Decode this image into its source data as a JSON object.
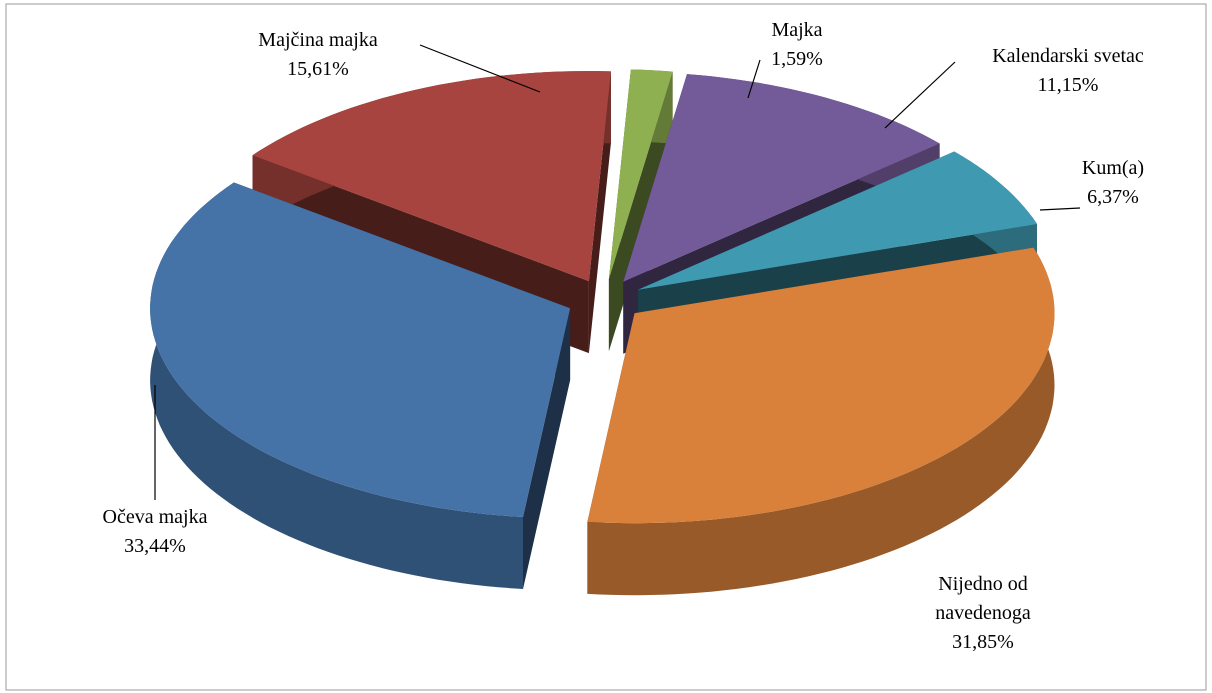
{
  "chart_data": {
    "type": "pie3d",
    "categories": [
      "Majka",
      "Kalendarski svetac",
      "Kum(a)",
      "Nijedno od navedenoga",
      "Očeva majka",
      "Majčina majka"
    ],
    "values": [
      1.59,
      11.15,
      6.37,
      31.85,
      33.44,
      15.61
    ],
    "value_labels": [
      "1,59%",
      "11,15%",
      "6,37%",
      "31,85%",
      "33,44%",
      "15,61%"
    ],
    "colors": [
      "#8fb050",
      "#735a98",
      "#3f9ab1",
      "#d9803a",
      "#4573a8",
      "#a8443f"
    ],
    "exploded": true
  }
}
